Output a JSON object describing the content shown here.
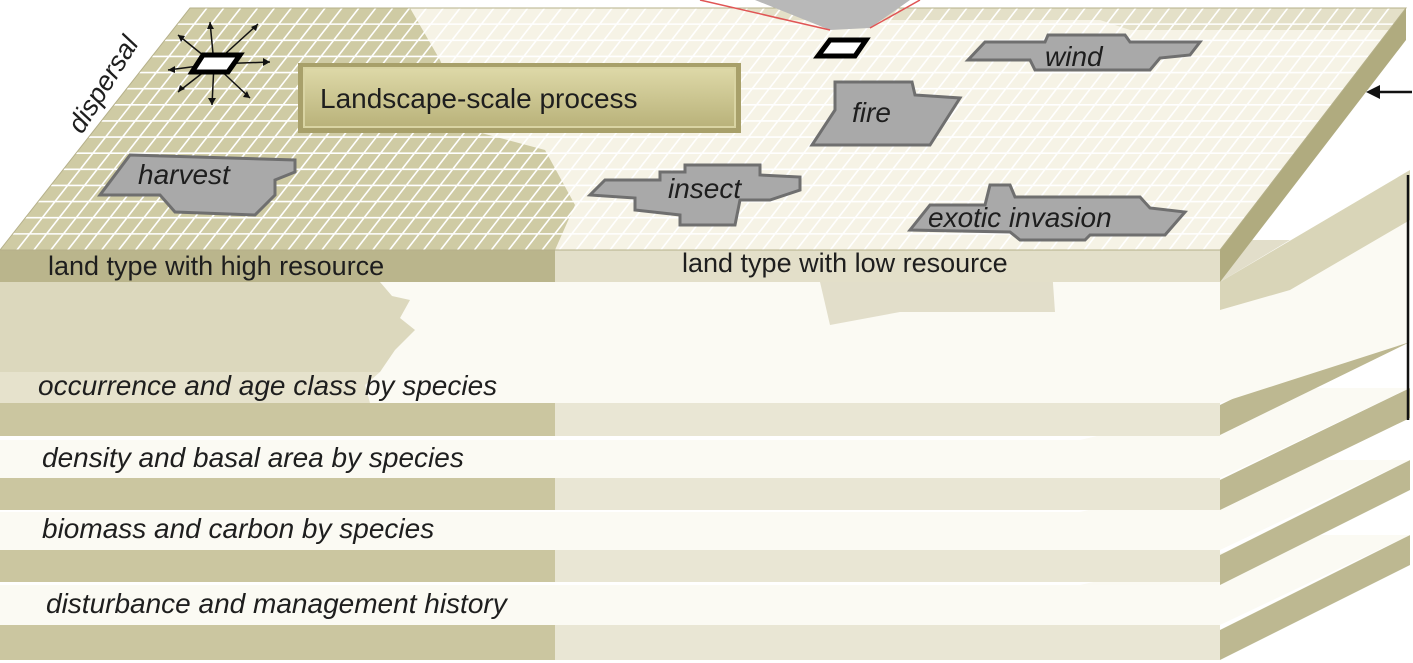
{
  "top_layer": {
    "process_box_label": "Landscape-scale process",
    "dispersal_label": "dispersal",
    "high_resource_label": "land type with high resource",
    "low_resource_label": "land type with low resource",
    "disturbances": {
      "harvest": "harvest",
      "fire": "fire",
      "wind": "wind",
      "insect": "insect",
      "exotic_invasion": "exotic invasion"
    }
  },
  "lower_layers": [
    {
      "label": "occurrence and age class by species"
    },
    {
      "label": "density and basal area by species"
    },
    {
      "label": "biomass and carbon by species"
    },
    {
      "label": "disturbance and management history"
    }
  ],
  "colors": {
    "high_resource": "#cfcba4",
    "low_resource": "#f6f3e6",
    "layer_edge_dark": "#b8b38a",
    "layer_edge_light": "#ddd8bd",
    "grid_line": "#ffffff",
    "disturbance_fill": "#a9a9a9",
    "disturbance_stroke": "#6f6f6f",
    "process_box": "#c9c48f"
  }
}
